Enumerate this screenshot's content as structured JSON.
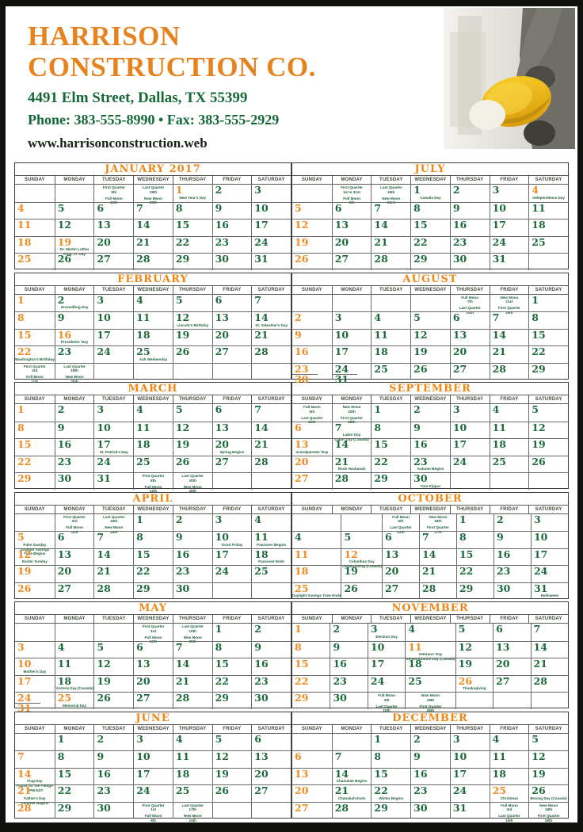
{
  "header": {
    "company_line1": "HARRISON",
    "company_line2": "CONSTRUCTION CO.",
    "address": "4491 Elm Street, Dallas, TX 55399",
    "phone_fax": "Phone: 383-555-8990 • Fax: 383-555-2929",
    "website": "www.harrisonconstruction.web",
    "photo_description": "construction worker holding yellow hard hat"
  },
  "colors": {
    "accent_orange": "#ef8a1f",
    "calendar_green": "#1c6a3a",
    "title_orange": "#ef8712",
    "address_green": "#156939",
    "frame_black": "#111110"
  },
  "weekdays": [
    "SUNDAY",
    "MONDAY",
    "TUESDAY",
    "WEDNESDAY",
    "THURSDAY",
    "FRIDAY",
    "SATURDAY"
  ],
  "months": [
    {
      "name": "JANUARY 2017",
      "start": 4,
      "days": 31,
      "orange_days": [
        1,
        19
      ],
      "green_sundays": [],
      "shared": [],
      "notes": {
        "1": [
          "New Year's Day"
        ],
        "19": [
          "Dr. Martin Luther",
          "King, Jr. Day"
        ]
      },
      "moon": [
        {
          "r": 0,
          "c": 2,
          "groups": [
            [
              "First Quarter",
              "5th"
            ],
            [
              "Full Moon",
              "12th"
            ]
          ]
        },
        {
          "r": 0,
          "c": 3,
          "groups": [
            [
              "Last Quarter",
              "19th"
            ],
            [
              "New Moon",
              "28th"
            ]
          ]
        }
      ]
    },
    {
      "name": "FEBRUARY",
      "start": 0,
      "days": 28,
      "orange_days": [
        16
      ],
      "green_sundays": [],
      "shared": [],
      "notes": {
        "2": [
          "Groundhog Day"
        ],
        "12": [
          "Lincoln's Birthday"
        ],
        "14": [
          "St. Valentine's Day"
        ],
        "16": [
          "Presidents' Day"
        ],
        "22": [
          "Washington's Birthday"
        ],
        "25": [
          "Ash Wednesday"
        ]
      },
      "moon": [
        {
          "r": 4,
          "c": 0,
          "groups": [
            [
              "First Quarter",
              "3rd"
            ],
            [
              "Full Moon",
              "11th"
            ]
          ]
        },
        {
          "r": 4,
          "c": 1,
          "groups": [
            [
              "Last Quarter",
              "18th"
            ],
            [
              "New Moon",
              "26th"
            ]
          ]
        }
      ]
    },
    {
      "name": "MARCH",
      "start": 0,
      "days": 31,
      "orange_days": [],
      "green_sundays": [],
      "shared": [],
      "notes": {
        "17": [
          "St. Patrick's Day"
        ],
        "20": [
          "Spring Begins"
        ]
      },
      "moon": [
        {
          "r": 4,
          "c": 3,
          "groups": [
            [
              "First Quarter",
              "5th"
            ],
            [
              "Full Moon",
              "12th"
            ]
          ]
        },
        {
          "r": 4,
          "c": 4,
          "groups": [
            [
              "Last Quarter",
              "20th"
            ],
            [
              "New Moon",
              "28th"
            ]
          ]
        }
      ]
    },
    {
      "name": "APRIL",
      "start": 3,
      "days": 30,
      "orange_days": [],
      "green_sundays": [],
      "shared": [],
      "notes": {
        "5": [
          "Palm Sunday",
          "Daylight Savings",
          "Time Begins"
        ],
        "10": [
          "Good Friday"
        ],
        "11": [
          "Passover Begins"
        ],
        "12": [
          "Easter Sunday"
        ],
        "18": [
          "Passover Ends"
        ]
      },
      "moon": [
        {
          "r": 0,
          "c": 1,
          "groups": [
            [
              "First Quarter",
              "3rd"
            ],
            [
              "Full Moon",
              "11th"
            ]
          ]
        },
        {
          "r": 0,
          "c": 2,
          "groups": [
            [
              "Last Quarter",
              "19th"
            ],
            [
              "New Moon",
              "26th"
            ]
          ]
        }
      ]
    },
    {
      "name": "MAY",
      "start": 5,
      "days": 31,
      "orange_days": [
        25
      ],
      "green_sundays": [],
      "shared": [
        {
          "day": 24,
          "add": 31
        }
      ],
      "notes": {
        "10": [
          "Mother's Day"
        ],
        "18": [
          "Victoria Day (Canada)"
        ],
        "25": [
          "Memorial Day"
        ]
      },
      "moon": [
        {
          "r": 0,
          "c": 3,
          "groups": [
            [
              "First Quarter",
              "3rd"
            ],
            [
              "Full Moon",
              "10th"
            ]
          ]
        },
        {
          "r": 0,
          "c": 4,
          "groups": [
            [
              "Last Quarter",
              "19th"
            ],
            [
              "New Moon",
              "25th"
            ]
          ]
        }
      ]
    },
    {
      "name": "JUNE",
      "start": 1,
      "days": 30,
      "orange_days": [],
      "green_sundays": [],
      "shared": [],
      "notes": {
        "14": [
          "Flag Day",
          "\"Pause for the Pledge\"",
          "7 PM EDT"
        ],
        "21": [
          "Father's Day",
          "Summer Begins"
        ]
      },
      "moon": [
        {
          "r": 4,
          "c": 3,
          "groups": [
            [
              "First Quarter",
              "1st"
            ],
            [
              "Full Moon",
              "9th"
            ]
          ]
        },
        {
          "r": 4,
          "c": 4,
          "groups": [
            [
              "Last Quarter",
              "17th"
            ],
            [
              "New Moon",
              "24th"
            ]
          ]
        }
      ]
    },
    {
      "name": "JULY",
      "start": 3,
      "days": 31,
      "orange_days": [
        4
      ],
      "green_sundays": [],
      "shared": [],
      "notes": {
        "1": [
          "Canada Day"
        ],
        "4": [
          "Independence Day"
        ]
      },
      "moon": [
        {
          "r": 0,
          "c": 1,
          "groups": [
            [
              "First Quarter",
              "1st & 31st"
            ],
            [
              "Full Moon",
              "9th"
            ]
          ]
        },
        {
          "r": 0,
          "c": 2,
          "groups": [
            [
              "Last Quarter",
              "16th"
            ],
            [
              "New Moon",
              "23rd"
            ]
          ]
        }
      ]
    },
    {
      "name": "AUGUST",
      "start": 6,
      "days": 31,
      "orange_days": [],
      "green_sundays": [],
      "shared": [
        {
          "day": 23,
          "add": 30
        },
        {
          "day": 24,
          "add": 31
        }
      ],
      "notes": {},
      "moon": [
        {
          "r": 0,
          "c": 4,
          "groups": [
            [
              "Full Moon",
              "7th"
            ],
            [
              "Last Quarter",
              "14th"
            ]
          ]
        },
        {
          "r": 0,
          "c": 5,
          "groups": [
            [
              "New Moon",
              "21st"
            ],
            [
              "First Quarter",
              "29th"
            ]
          ]
        }
      ]
    },
    {
      "name": "SEPTEMBER",
      "start": 2,
      "days": 30,
      "orange_days": [],
      "green_sundays": [],
      "shared": [],
      "notes": {
        "7": [
          "Labor Day",
          "Labor Day (Canada)"
        ],
        "13": [
          "Grandparents' Day"
        ],
        "21": [
          "Rosh Hashanah"
        ],
        "23": [
          "Autumn Begins"
        ],
        "30": [
          "Yom Kippur"
        ]
      },
      "moon": [
        {
          "r": 0,
          "c": 0,
          "groups": [
            [
              "Full Moon",
              "6th"
            ],
            [
              "Last Quarter",
              "13th"
            ]
          ]
        },
        {
          "r": 0,
          "c": 1,
          "groups": [
            [
              "New Moon",
              "20th"
            ],
            [
              "First Quarter",
              "28th"
            ]
          ]
        }
      ]
    },
    {
      "name": "OCTOBER",
      "start": 4,
      "days": 31,
      "orange_days": [
        12
      ],
      "green_sundays": [
        4
      ],
      "shared": [],
      "notes": {
        "12": [
          "Columbus Day",
          "Thanksgiving (Canada)"
        ],
        "25": [
          "Daylight Savings Time Ends"
        ],
        "31": [
          "Halloween"
        ]
      },
      "moon": [
        {
          "r": 0,
          "c": 2,
          "groups": [
            [
              "Full Moon",
              "5th"
            ],
            [
              "Last Quarter",
              "12th"
            ]
          ]
        },
        {
          "r": 0,
          "c": 3,
          "groups": [
            [
              "New Moon",
              "19th"
            ],
            [
              "First Quarter",
              "27th"
            ]
          ]
        }
      ]
    },
    {
      "name": "NOVEMBER",
      "start": 0,
      "days": 30,
      "orange_days": [
        11,
        26
      ],
      "green_sundays": [],
      "shared": [],
      "notes": {
        "3": [
          "Election Day"
        ],
        "11": [
          "Veterans' Day",
          "Remembrance Day (Canada)"
        ],
        "26": [
          "Thanksgiving"
        ]
      },
      "moon": [
        {
          "r": 4,
          "c": 2,
          "groups": [
            [
              "Full Moon",
              "4th"
            ],
            [
              "Last Quarter",
              "10th"
            ]
          ]
        },
        {
          "r": 4,
          "c": 3,
          "groups": [
            [
              "New Moon",
              "18th"
            ],
            [
              "First Quarter",
              "26th"
            ]
          ]
        }
      ]
    },
    {
      "name": "DECEMBER",
      "start": 2,
      "days": 31,
      "orange_days": [
        25
      ],
      "green_sundays": [],
      "shared": [],
      "notes": {
        "14": [
          "Chanukah Begins"
        ],
        "21": [
          "Chanukah Ends"
        ],
        "22": [
          "Winter Begins"
        ],
        "25": [
          "Christmas"
        ],
        "26": [
          "Boxing Day (Canada)"
        ]
      },
      "moon": [
        {
          "r": 4,
          "c": 5,
          "groups": [
            [
              "Full Moon",
              "3rd"
            ],
            [
              "Last Quarter",
              "10th"
            ]
          ]
        },
        {
          "r": 4,
          "c": 6,
          "groups": [
            [
              "New Moon",
              "18th"
            ],
            [
              "First Quarter",
              "26th"
            ]
          ]
        }
      ]
    }
  ]
}
